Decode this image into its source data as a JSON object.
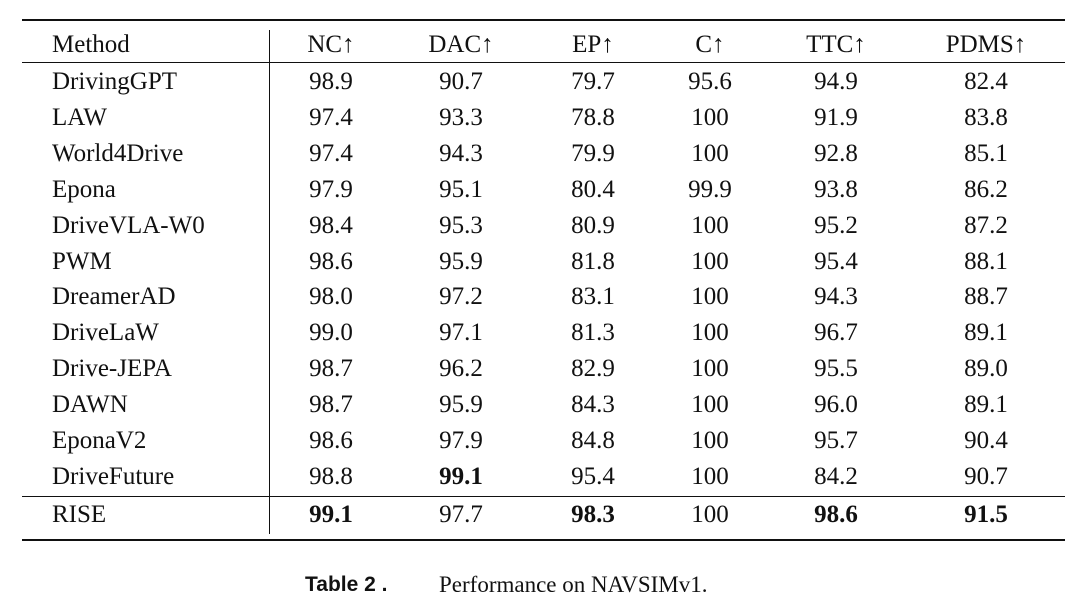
{
  "table": {
    "header": [
      "Method",
      "NC↑",
      "DAC↑",
      "EP↑",
      "C↑",
      "TTC↑",
      "PDMS↑"
    ],
    "rows": [
      [
        "DrivingGPT",
        "98.9",
        "90.7",
        "79.7",
        "95.6",
        "94.9",
        "82.4"
      ],
      [
        "LAW",
        "97.4",
        "93.3",
        "78.8",
        "100",
        "91.9",
        "83.8"
      ],
      [
        "World4Drive",
        "97.4",
        "94.3",
        "79.9",
        "100",
        "92.8",
        "85.1"
      ],
      [
        "Epona",
        "97.9",
        "95.1",
        "80.4",
        "99.9",
        "93.8",
        "86.2"
      ],
      [
        "DriveVLA-W0",
        "98.4",
        "95.3",
        "80.9",
        "100",
        "95.2",
        "87.2"
      ],
      [
        "PWM",
        "98.6",
        "95.9",
        "81.8",
        "100",
        "95.4",
        "88.1"
      ],
      [
        "DreamerAD",
        "98.0",
        "97.2",
        "83.1",
        "100",
        "94.3",
        "88.7"
      ],
      [
        "DriveLaW",
        "99.0",
        "97.1",
        "81.3",
        "100",
        "96.7",
        "89.1"
      ],
      [
        "Drive-JEPA",
        "98.7",
        "96.2",
        "82.9",
        "100",
        "95.5",
        "89.0"
      ],
      [
        "DAWN",
        "98.7",
        "95.9",
        "84.3",
        "100",
        "96.0",
        "89.1"
      ],
      [
        "EponaV2",
        "98.6",
        "97.9",
        "84.8",
        "100",
        "95.7",
        "90.4"
      ],
      [
        "DriveFuture",
        "98.8",
        "99.1",
        "95.4",
        "100",
        "84.2",
        "90.7"
      ],
      [
        "RISE",
        "99.1",
        "97.7",
        "98.3",
        "100",
        "98.6",
        "91.5"
      ]
    ],
    "bold": [
      [
        11,
        2
      ],
      [
        12,
        1
      ],
      [
        12,
        3
      ],
      [
        12,
        5
      ],
      [
        12,
        6
      ]
    ]
  },
  "caption": {
    "label": "Table 2 .",
    "text": "Performance on NAVSIMv1."
  }
}
